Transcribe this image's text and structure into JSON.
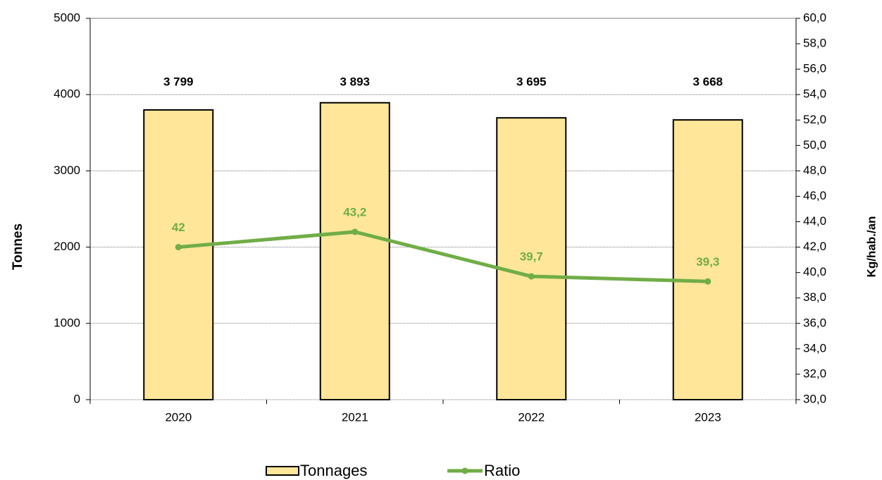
{
  "chart_data": {
    "type": "combo",
    "categories": [
      "2020",
      "2021",
      "2022",
      "2023"
    ],
    "series": [
      {
        "name": "Tonnages",
        "type": "bar",
        "color": "#ffe699",
        "values": [
          3799,
          3893,
          3695,
          3668
        ],
        "value_labels": [
          "3 799",
          "3 893",
          "3 695",
          "3 668"
        ]
      },
      {
        "name": "Ratio",
        "type": "line",
        "axis": "y2",
        "color": "#70ad47",
        "values": [
          42,
          43.2,
          39.7,
          39.3
        ],
        "value_labels": [
          "42",
          "43,2",
          "39,7",
          "39,3"
        ]
      }
    ],
    "ylabel": "Tonnes",
    "y2label": "Kg/hab./an",
    "ylim": [
      0,
      5000
    ],
    "yticks": [
      0,
      1000,
      2000,
      3000,
      4000,
      5000
    ],
    "y2lim": [
      30,
      60
    ],
    "y2ticks": [
      {
        "value": 30,
        "label": "30,0"
      },
      {
        "value": 32,
        "label": "32,0"
      },
      {
        "value": 34,
        "label": "34,0"
      },
      {
        "value": 36,
        "label": "36,0"
      },
      {
        "value": 38,
        "label": "38,0"
      },
      {
        "value": 40,
        "label": "40,0"
      },
      {
        "value": 42,
        "label": "42,0"
      },
      {
        "value": 44,
        "label": "44,0"
      },
      {
        "value": 46,
        "label": "46,0"
      },
      {
        "value": 48,
        "label": "48,0"
      },
      {
        "value": 50,
        "label": "50,0"
      },
      {
        "value": 52,
        "label": "52,0"
      },
      {
        "value": 54,
        "label": "54,0"
      },
      {
        "value": 56,
        "label": "56,0"
      },
      {
        "value": 58,
        "label": "58,0"
      },
      {
        "value": 60,
        "label": "60,0"
      }
    ],
    "grid": true,
    "legend": "bottom"
  }
}
